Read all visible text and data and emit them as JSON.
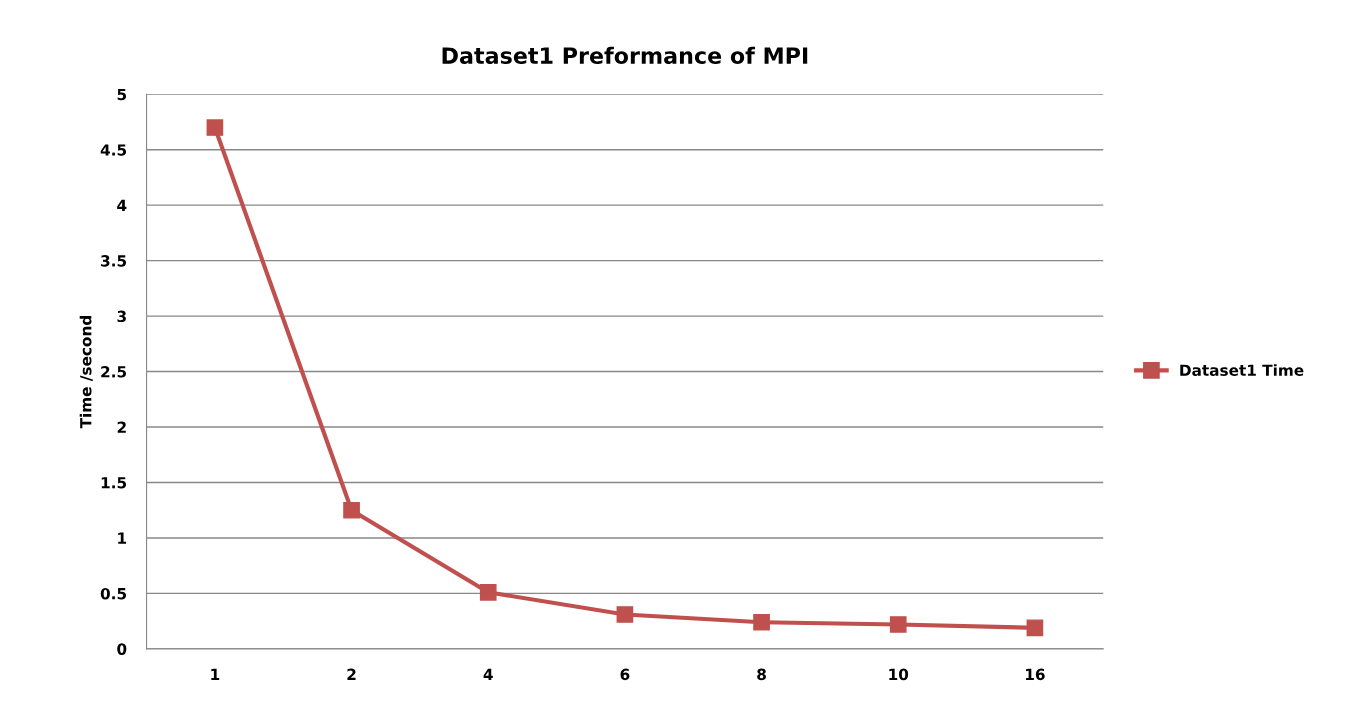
{
  "chart_data": {
    "type": "line",
    "title": "Dataset1 Preformance of MPI",
    "ylabel": "Time /second",
    "categories": [
      "1",
      "2",
      "4",
      "6",
      "8",
      "10",
      "16"
    ],
    "series": [
      {
        "name": "Dataset1 Time",
        "color": "#c0504d",
        "values": [
          4.7,
          1.25,
          0.51,
          0.31,
          0.24,
          0.22,
          0.19
        ]
      }
    ],
    "ylim": [
      0,
      5
    ],
    "yticks": [
      0,
      0.5,
      1,
      1.5,
      2,
      2.5,
      3,
      3.5,
      4,
      4.5,
      5
    ],
    "grid": "y",
    "legend": "right",
    "marker": "square",
    "line_style": "solid"
  }
}
